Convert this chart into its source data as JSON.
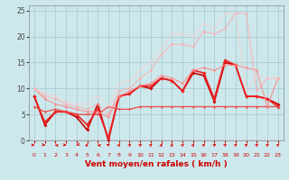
{
  "xlabel": "Vent moyen/en rafales ( km/h )",
  "xlim": [
    -0.5,
    23.5
  ],
  "ylim": [
    0,
    26
  ],
  "xticks": [
    0,
    1,
    2,
    3,
    4,
    5,
    6,
    7,
    8,
    9,
    10,
    11,
    12,
    13,
    14,
    15,
    16,
    17,
    18,
    19,
    20,
    21,
    22,
    23
  ],
  "yticks": [
    0,
    5,
    10,
    15,
    20,
    25
  ],
  "bg_color": "#cde8ec",
  "grid_color": "#aacdd2",
  "series": [
    {
      "x": [
        0,
        1,
        2,
        3,
        4,
        5,
        6,
        7,
        8,
        9,
        10,
        11,
        12,
        13,
        14,
        15,
        16,
        17,
        18,
        19,
        20,
        21,
        22,
        23
      ],
      "y": [
        8.5,
        3.0,
        5.5,
        5.5,
        4.5,
        2.0,
        7.0,
        0.0,
        8.5,
        9.0,
        10.5,
        10.0,
        12.0,
        11.5,
        9.5,
        13.0,
        12.5,
        7.5,
        15.0,
        14.5,
        8.5,
        8.5,
        8.0,
        7.0
      ],
      "color": "#cc0000",
      "lw": 1.2,
      "ms": 2.0,
      "alpha": 1.0
    },
    {
      "x": [
        0,
        1,
        2,
        3,
        4,
        5,
        6,
        7,
        8,
        9,
        10,
        11,
        12,
        13,
        14,
        15,
        16,
        17,
        18,
        19,
        20,
        21,
        22,
        23
      ],
      "y": [
        8.5,
        3.5,
        5.5,
        5.5,
        5.0,
        3.0,
        6.0,
        0.5,
        8.5,
        9.0,
        10.5,
        10.5,
        12.0,
        11.5,
        9.5,
        13.5,
        13.0,
        8.0,
        15.5,
        14.5,
        8.5,
        8.5,
        8.0,
        6.5
      ],
      "color": "#ee2222",
      "lw": 1.2,
      "ms": 2.0,
      "alpha": 1.0
    },
    {
      "x": [
        0,
        1,
        2,
        3,
        4,
        5,
        6,
        7,
        8,
        9,
        10,
        11,
        12,
        13,
        14,
        15,
        16,
        17,
        18,
        19,
        20,
        21,
        22,
        23
      ],
      "y": [
        6.5,
        5.5,
        6.0,
        5.5,
        5.0,
        5.0,
        5.0,
        6.5,
        6.0,
        6.0,
        6.5,
        6.5,
        6.5,
        6.5,
        6.5,
        6.5,
        6.5,
        6.5,
        6.5,
        6.5,
        6.5,
        6.5,
        6.5,
        6.5
      ],
      "color": "#ee4444",
      "lw": 1.0,
      "ms": 1.5,
      "alpha": 0.9
    },
    {
      "x": [
        0,
        1,
        2,
        3,
        4,
        5,
        6,
        7,
        8,
        9,
        10,
        11,
        12,
        13,
        14,
        15,
        16,
        17,
        18,
        19,
        20,
        21,
        22,
        23
      ],
      "y": [
        10.0,
        8.0,
        7.0,
        6.5,
        6.0,
        5.5,
        5.5,
        4.5,
        8.5,
        9.5,
        10.5,
        11.0,
        12.5,
        12.0,
        11.0,
        13.5,
        14.0,
        13.5,
        14.5,
        14.5,
        14.0,
        13.5,
        6.5,
        12.0
      ],
      "color": "#ff8888",
      "lw": 1.0,
      "ms": 1.8,
      "alpha": 0.75
    },
    {
      "x": [
        0,
        1,
        2,
        3,
        4,
        5,
        6,
        7,
        8,
        9,
        10,
        11,
        12,
        13,
        14,
        15,
        16,
        17,
        18,
        19,
        20,
        21,
        22,
        23
      ],
      "y": [
        10.0,
        8.5,
        8.0,
        7.0,
        6.5,
        6.0,
        7.0,
        5.0,
        9.5,
        10.0,
        12.0,
        13.5,
        16.5,
        18.5,
        18.5,
        18.0,
        21.0,
        20.5,
        21.5,
        24.5,
        24.5,
        9.5,
        12.0,
        12.0
      ],
      "color": "#ffaaaa",
      "lw": 1.0,
      "ms": 1.8,
      "alpha": 0.65
    },
    {
      "x": [
        0,
        1,
        2,
        3,
        4,
        5,
        6,
        7,
        8,
        9,
        10,
        11,
        12,
        13,
        14,
        15,
        16,
        17,
        18,
        19,
        20,
        21,
        22,
        23
      ],
      "y": [
        10.0,
        9.0,
        8.5,
        7.5,
        7.0,
        7.0,
        8.5,
        6.5,
        11.0,
        11.5,
        13.5,
        15.0,
        17.5,
        20.5,
        20.5,
        20.0,
        22.5,
        21.5,
        24.5,
        24.5,
        9.5,
        12.5,
        12.0,
        12.0
      ],
      "color": "#ffcccc",
      "lw": 1.0,
      "ms": 1.5,
      "alpha": 0.5
    }
  ],
  "arrow_color": "#dd0000",
  "arrow_angles_deg": [
    90,
    70,
    250,
    80,
    300,
    310,
    250,
    225,
    160,
    155,
    150,
    150,
    165,
    165,
    155,
    160,
    155,
    150,
    145,
    145,
    150,
    150,
    150,
    150
  ]
}
